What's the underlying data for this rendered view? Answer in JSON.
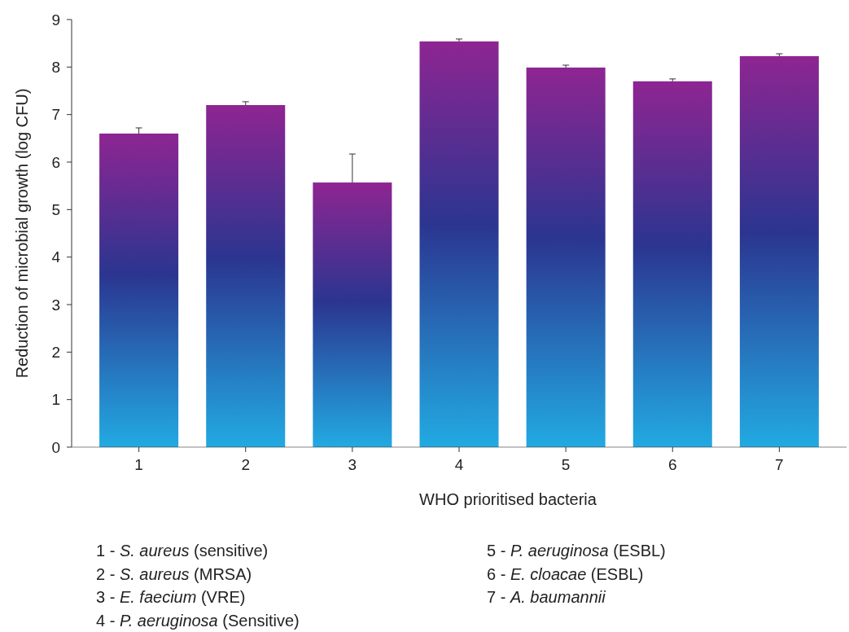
{
  "chart_data": {
    "type": "bar",
    "xlabel": "WHO prioritised bacteria",
    "ylabel": "Reduction of microbial growth (log CFU)",
    "categories": [
      "1",
      "2",
      "3",
      "4",
      "5",
      "6",
      "7"
    ],
    "values": [
      6.6,
      7.2,
      5.57,
      8.54,
      7.99,
      7.7,
      8.23
    ],
    "errors": [
      [
        6.6,
        6.72
      ],
      [
        7.2,
        7.27
      ],
      [
        5.57,
        6.17
      ],
      [
        8.54,
        8.59
      ],
      [
        7.99,
        8.04
      ],
      [
        7.7,
        7.75
      ],
      [
        8.23,
        8.28
      ]
    ],
    "color": "#2b3590",
    "ylim": [
      0,
      9
    ],
    "yticks": [
      0,
      1,
      2,
      3,
      4,
      5,
      6,
      7,
      8,
      9
    ],
    "grid": false,
    "annotations": [
      "1 - S. aureus (sensitive)",
      "2 - S. aureus (MRSA)",
      "3 - E. faecium (VRE)",
      "4 - P. aeruginosa (Sensitive)",
      "5 - P. aeruginosa (ESBL)",
      "6 - E. cloacae (ESBL)",
      "7 - A. baumannii"
    ]
  }
}
